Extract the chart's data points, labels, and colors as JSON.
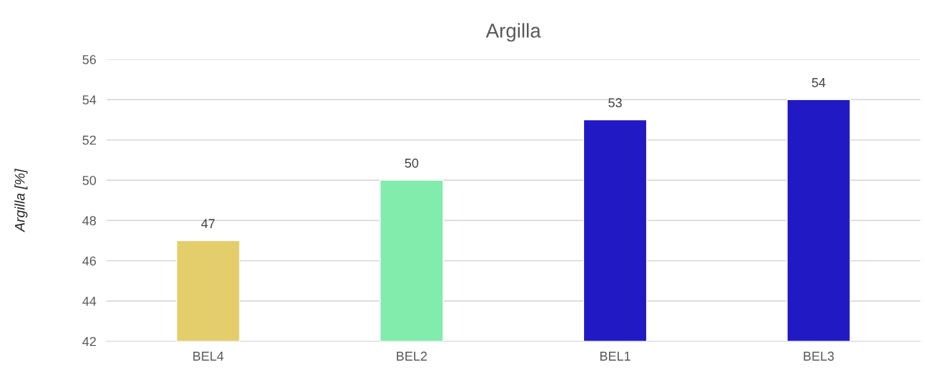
{
  "chart_data": {
    "type": "bar",
    "title": "Argilla",
    "ylabel": "Argilla [%]",
    "categories": [
      "BEL4",
      "BEL2",
      "BEL1",
      "BEL3"
    ],
    "values": [
      47,
      50,
      53,
      54
    ],
    "colors": [
      "#e3ce6b",
      "#82ecad",
      "#2119c4",
      "#2119c4"
    ],
    "ylim": [
      42,
      56
    ],
    "yticks": [
      42,
      44,
      46,
      48,
      50,
      52,
      54,
      56
    ],
    "grid": "y",
    "data_labels": true
  }
}
